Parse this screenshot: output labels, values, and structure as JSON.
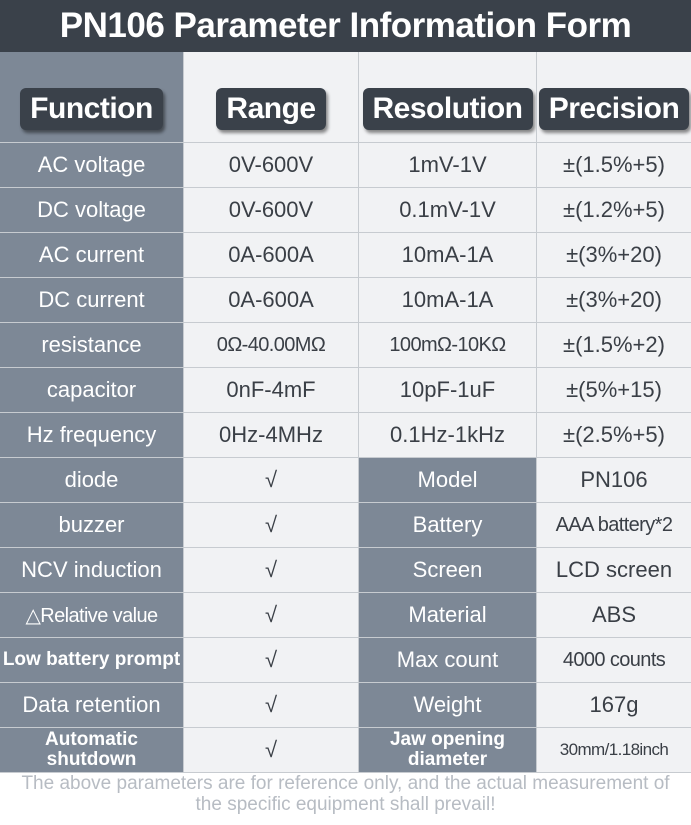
{
  "title": "PN106 Parameter Information Form",
  "headers": {
    "function": "Function",
    "range": "Range",
    "resolution": "Resolution",
    "precision": "Precision"
  },
  "rows": [
    {
      "function": "AC voltage",
      "range": "0V-600V",
      "resolution": "1mV-1V",
      "precision": "±(1.5%+5)"
    },
    {
      "function": "DC voltage",
      "range": "0V-600V",
      "resolution": "0.1mV-1V",
      "precision": "±(1.2%+5)"
    },
    {
      "function": "AC current",
      "range": "0A-600A",
      "resolution": "10mA-1A",
      "precision": "±(3%+20)"
    },
    {
      "function": "DC current",
      "range": "0A-600A",
      "resolution": "10mA-1A",
      "precision": "±(3%+20)"
    },
    {
      "function": "resistance",
      "range": "0Ω-40.00MΩ",
      "resolution": "100mΩ-10KΩ",
      "precision": "±(1.5%+2)"
    },
    {
      "function": "capacitor",
      "range": "0nF-4mF",
      "resolution": "10pF-1uF",
      "precision": "±(5%+15)"
    },
    {
      "function": "Hz frequency",
      "range": "0Hz-4MHz",
      "resolution": "0.1Hz-1kHz",
      "precision": "±(2.5%+5)"
    }
  ],
  "feature_rows": [
    {
      "function": "diode",
      "check": "√",
      "spec_label": "Model",
      "spec_value": "PN106"
    },
    {
      "function": "buzzer",
      "check": "√",
      "spec_label": "Battery",
      "spec_value": "AAA battery*2"
    },
    {
      "function": "NCV induction",
      "check": "√",
      "spec_label": "Screen",
      "spec_value": "LCD screen"
    },
    {
      "function": "△Relative value",
      "check": "√",
      "spec_label": "Material",
      "spec_value": "ABS"
    },
    {
      "function": "Low battery prompt",
      "check": "√",
      "spec_label": "Max count",
      "spec_value": "4000 counts"
    },
    {
      "function": "Data retention",
      "check": "√",
      "spec_label": "Weight",
      "spec_value": "167g"
    },
    {
      "function": "Automatic shutdown",
      "check": "√",
      "spec_label": "Jaw opening diameter",
      "spec_value": "30mm/1.18inch"
    }
  ],
  "footer": "The above parameters are for reference only, and the actual measurement of the specific equipment shall prevail!"
}
